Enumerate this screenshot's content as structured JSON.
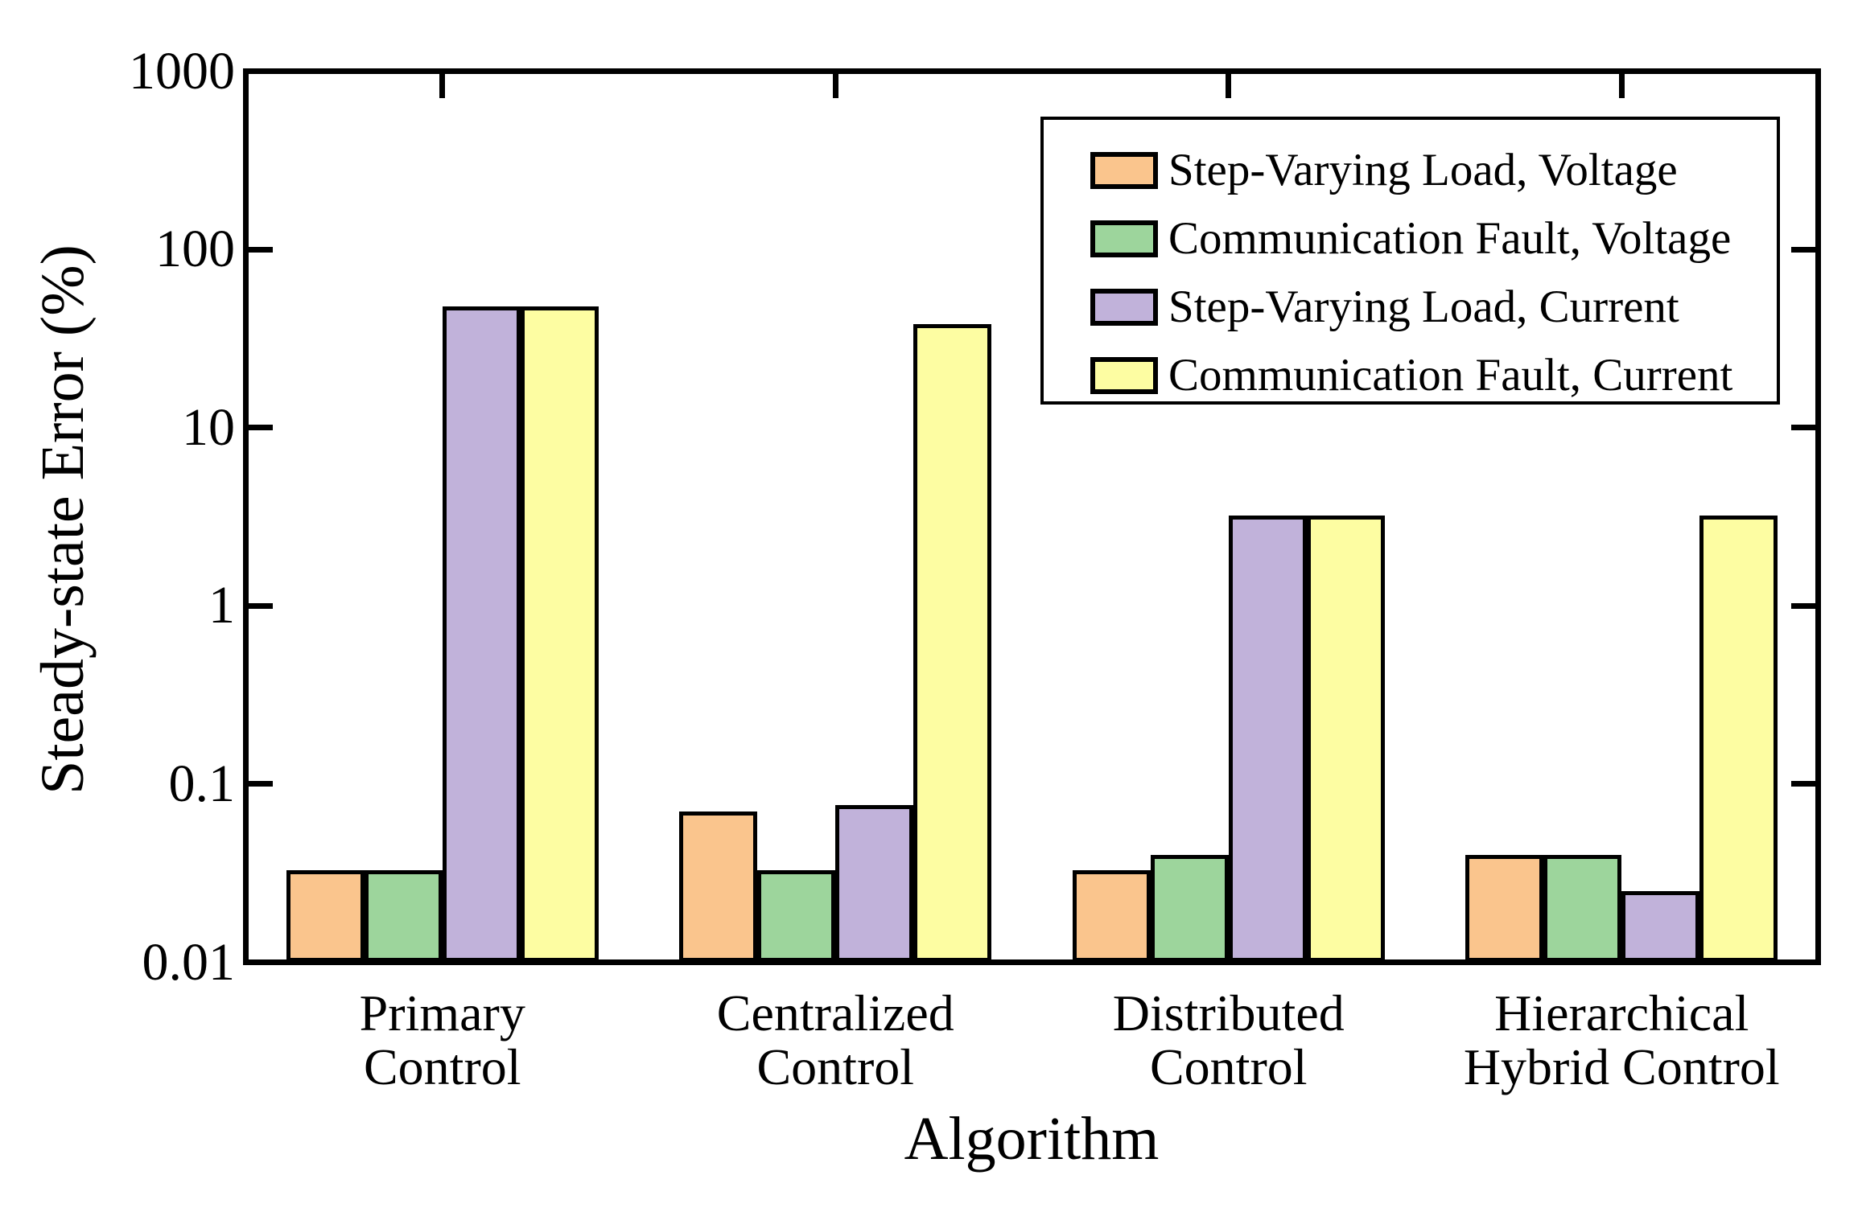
{
  "figure": {
    "background_color": "#ffffff",
    "axis_color": "#000000"
  },
  "chart_data": {
    "type": "bar",
    "title": "",
    "xlabel": "Algorithm",
    "ylabel": "Steady-state Error (%)",
    "y_scale": "log",
    "ylim": [
      0.01,
      1000
    ],
    "yticks": [
      1000,
      100,
      10,
      1,
      0.1,
      0.01
    ],
    "ytick_labels": [
      "1000",
      "100",
      "10",
      "1",
      "0.1",
      "0.01"
    ],
    "grid": false,
    "legend_position": "upper-right-inside",
    "categories": [
      "Primary Control",
      "Centralized Control",
      "Distributed Control",
      "Hierarchical Hybrid Control"
    ],
    "category_lines": [
      [
        "Primary",
        "Control"
      ],
      [
        "Centralized",
        "Control"
      ],
      [
        "Distributed",
        "Control"
      ],
      [
        "Hierarchical",
        "Hybrid Control"
      ]
    ],
    "series": [
      {
        "name": "Step-Varying Load, Voltage",
        "color": "#FAC58D",
        "values": [
          0.033,
          0.07,
          0.033,
          0.04
        ]
      },
      {
        "name": "Communication Fault, Voltage",
        "color": "#9DD59C",
        "values": [
          0.033,
          0.033,
          0.04,
          0.04
        ]
      },
      {
        "name": "Step-Varying Load, Current",
        "color": "#C1B2DA",
        "values": [
          48,
          0.076,
          3.2,
          0.025
        ]
      },
      {
        "name": "Communication Fault, Current",
        "color": "#FDFDA2",
        "values": [
          48,
          38,
          3.2,
          3.2
        ]
      }
    ]
  }
}
